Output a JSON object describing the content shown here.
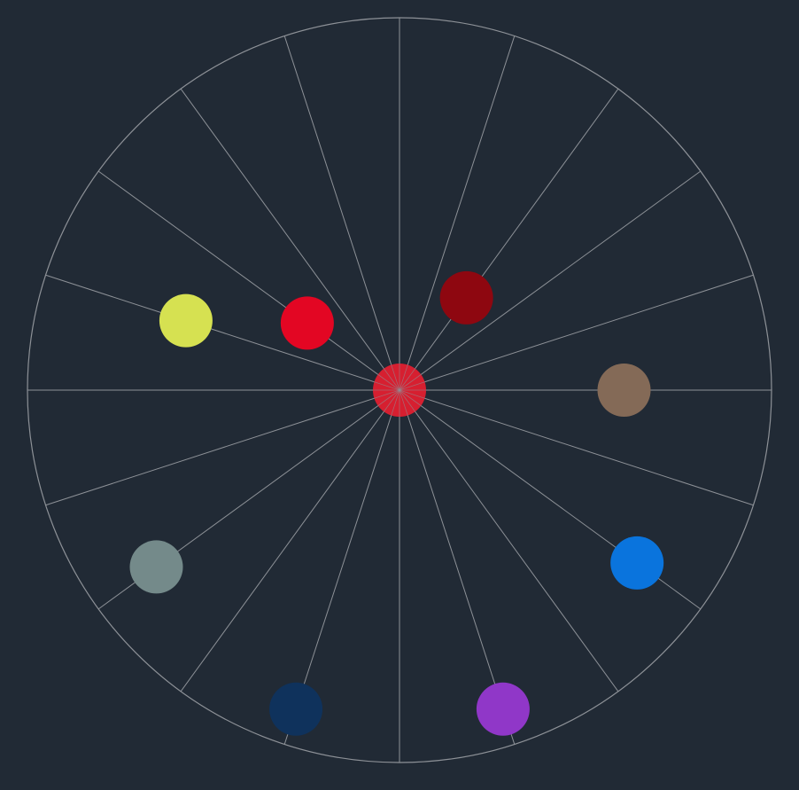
{
  "board": {
    "background": "#212a35",
    "line_color": "#8d9197",
    "spokes": 20
  },
  "center_piece": {
    "color": "#d61f30"
  },
  "pieces": [
    {
      "name": "dark-red-piece",
      "color": "#8e0710",
      "spoke": 3,
      "ring": 0.33
    },
    {
      "name": "brown-piece",
      "color": "#846a57",
      "spoke": 0,
      "ring": 0.65
    },
    {
      "name": "blue-piece",
      "color": "#0a74dd",
      "spoke": 18,
      "ring": 0.85
    },
    {
      "name": "purple-piece",
      "color": "#9037c8",
      "spoke": 16,
      "ring": 0.97
    },
    {
      "name": "navy-piece",
      "color": "#0f325c",
      "spoke": 14,
      "ring": 0.97
    },
    {
      "name": "gray-teal-piece",
      "color": "#748a8a",
      "spoke": 12,
      "ring": 0.87
    },
    {
      "name": "yellow-piece",
      "color": "#d6e151",
      "spoke": 9,
      "ring": 0.65
    },
    {
      "name": "red-piece",
      "color": "#e30623",
      "spoke": 8,
      "ring": 0.33
    }
  ]
}
